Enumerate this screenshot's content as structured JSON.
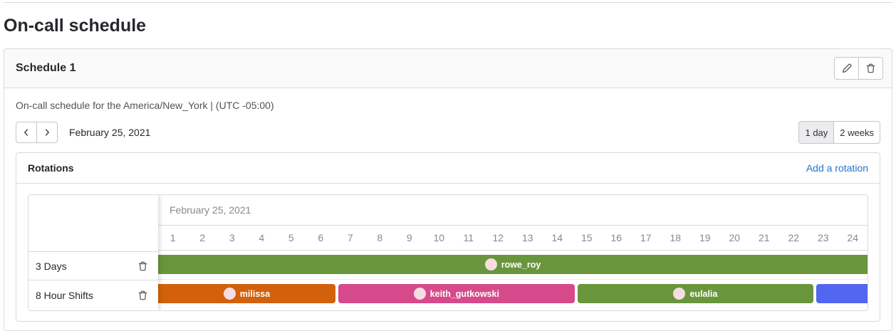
{
  "page": {
    "title": "On-call schedule"
  },
  "card": {
    "title": "Schedule 1",
    "actions": {
      "edit_icon": "pencil-icon",
      "delete_icon": "trash-icon"
    },
    "description": "On-call schedule for the America/New_York | (UTC -05:00)",
    "date_nav": {
      "prev_icon": "chevron-left-icon",
      "next_icon": "chevron-right-icon",
      "current_date": "February 25, 2021"
    },
    "view_toggle": {
      "options": [
        "1 day",
        "2 weeks"
      ],
      "selected": "1 day"
    }
  },
  "rotations": {
    "title": "Rotations",
    "add_link": "Add a rotation",
    "timeline": {
      "date_label": "February 25, 2021",
      "hours": [
        "1",
        "2",
        "3",
        "4",
        "5",
        "6",
        "7",
        "8",
        "9",
        "10",
        "11",
        "12",
        "13",
        "14",
        "15",
        "16",
        "17",
        "18",
        "19",
        "20",
        "21",
        "22",
        "23",
        "24"
      ]
    },
    "rows": [
      {
        "name": "3 Days",
        "delete_icon": "trash-icon",
        "shifts": [
          {
            "assignee": "rowe_roy",
            "color": "#69963c",
            "start_pct": 0,
            "end_pct": 100,
            "clip_left": true,
            "clip_right": true
          }
        ]
      },
      {
        "name": "8 Hour Shifts",
        "delete_icon": "trash-icon",
        "shifts": [
          {
            "assignee": "milissa",
            "color": "#d3610b",
            "start_pct": 0,
            "end_pct": 25.0,
            "clip_left": true
          },
          {
            "assignee": "keith_gutkowski",
            "color": "#d64a8b",
            "start_pct": 25.4,
            "end_pct": 58.7
          },
          {
            "assignee": "eulalia",
            "color": "#69963c",
            "start_pct": 59.1,
            "end_pct": 92.4
          },
          {
            "assignee": "",
            "color": "#5266f0",
            "start_pct": 92.8,
            "end_pct": 100,
            "clip_right": true
          }
        ]
      }
    ]
  },
  "colors": {
    "link": "#1f75cb",
    "bar_text": "#ffffff",
    "avatar_bg": "#f6dde2",
    "rotation_green": "#69963c",
    "rotation_orange": "#d3610b",
    "rotation_pink": "#d64a8b",
    "rotation_blue": "#5266f0"
  }
}
